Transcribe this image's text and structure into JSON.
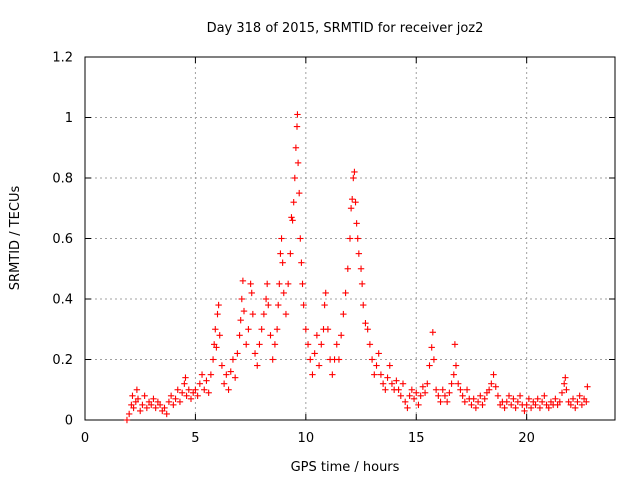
{
  "chart_data": {
    "type": "scatter",
    "title": "Day 318 of 2015, SRMTID for receiver joz2",
    "xlabel": "GPS time / hours",
    "ylabel": "SRMTID / TECUs",
    "xlim": [
      0,
      24
    ],
    "ylim": [
      0,
      1.2
    ],
    "xticks": [
      0,
      5,
      10,
      15,
      20
    ],
    "yticks": [
      0,
      0.2,
      0.4,
      0.6,
      0.8,
      1,
      1.2
    ],
    "ytick_labels": [
      "0",
      "0.2",
      "0.4",
      "0.6",
      "0.8",
      "1",
      "1.2"
    ],
    "grid": true,
    "marker": "+",
    "color": "#ff0000",
    "series": [
      {
        "name": "joz2",
        "points": [
          [
            1.9,
            0.0
          ],
          [
            2.0,
            0.02
          ],
          [
            2.1,
            0.05
          ],
          [
            2.15,
            0.08
          ],
          [
            2.2,
            0.04
          ],
          [
            2.3,
            0.06
          ],
          [
            2.35,
            0.1
          ],
          [
            2.4,
            0.07
          ],
          [
            2.5,
            0.03
          ],
          [
            2.6,
            0.05
          ],
          [
            2.7,
            0.08
          ],
          [
            2.8,
            0.04
          ],
          [
            2.9,
            0.06
          ],
          [
            3.0,
            0.05
          ],
          [
            3.1,
            0.07
          ],
          [
            3.2,
            0.04
          ],
          [
            3.3,
            0.06
          ],
          [
            3.4,
            0.05
          ],
          [
            3.5,
            0.03
          ],
          [
            3.6,
            0.04
          ],
          [
            3.7,
            0.02
          ],
          [
            3.8,
            0.06
          ],
          [
            3.9,
            0.08
          ],
          [
            4.0,
            0.05
          ],
          [
            4.1,
            0.07
          ],
          [
            4.2,
            0.1
          ],
          [
            4.3,
            0.06
          ],
          [
            4.4,
            0.09
          ],
          [
            4.5,
            0.12
          ],
          [
            4.55,
            0.14
          ],
          [
            4.6,
            0.08
          ],
          [
            4.7,
            0.1
          ],
          [
            4.8,
            0.07
          ],
          [
            4.9,
            0.09
          ],
          [
            5.0,
            0.1
          ],
          [
            5.1,
            0.08
          ],
          [
            5.2,
            0.12
          ],
          [
            5.3,
            0.15
          ],
          [
            5.4,
            0.1
          ],
          [
            5.5,
            0.13
          ],
          [
            5.6,
            0.09
          ],
          [
            5.7,
            0.15
          ],
          [
            5.8,
            0.2
          ],
          [
            5.85,
            0.25
          ],
          [
            5.9,
            0.3
          ],
          [
            5.95,
            0.24
          ],
          [
            6.0,
            0.35
          ],
          [
            6.05,
            0.38
          ],
          [
            6.1,
            0.28
          ],
          [
            6.2,
            0.18
          ],
          [
            6.3,
            0.12
          ],
          [
            6.4,
            0.15
          ],
          [
            6.5,
            0.1
          ],
          [
            6.6,
            0.16
          ],
          [
            6.7,
            0.2
          ],
          [
            6.8,
            0.14
          ],
          [
            6.9,
            0.22
          ],
          [
            7.0,
            0.28
          ],
          [
            7.05,
            0.33
          ],
          [
            7.1,
            0.4
          ],
          [
            7.15,
            0.46
          ],
          [
            7.2,
            0.36
          ],
          [
            7.3,
            0.25
          ],
          [
            7.4,
            0.3
          ],
          [
            7.5,
            0.45
          ],
          [
            7.55,
            0.42
          ],
          [
            7.6,
            0.35
          ],
          [
            7.7,
            0.22
          ],
          [
            7.8,
            0.18
          ],
          [
            7.9,
            0.25
          ],
          [
            8.0,
            0.3
          ],
          [
            8.1,
            0.35
          ],
          [
            8.2,
            0.4
          ],
          [
            8.25,
            0.45
          ],
          [
            8.3,
            0.38
          ],
          [
            8.4,
            0.28
          ],
          [
            8.5,
            0.2
          ],
          [
            8.6,
            0.25
          ],
          [
            8.7,
            0.3
          ],
          [
            8.75,
            0.38
          ],
          [
            8.8,
            0.45
          ],
          [
            8.85,
            0.55
          ],
          [
            8.9,
            0.6
          ],
          [
            8.95,
            0.52
          ],
          [
            9.0,
            0.42
          ],
          [
            9.1,
            0.35
          ],
          [
            9.2,
            0.45
          ],
          [
            9.3,
            0.55
          ],
          [
            9.35,
            0.67
          ],
          [
            9.4,
            0.66
          ],
          [
            9.45,
            0.72
          ],
          [
            9.5,
            0.8
          ],
          [
            9.55,
            0.9
          ],
          [
            9.6,
            0.97
          ],
          [
            9.62,
            1.01
          ],
          [
            9.65,
            0.85
          ],
          [
            9.7,
            0.75
          ],
          [
            9.75,
            0.6
          ],
          [
            9.8,
            0.52
          ],
          [
            9.85,
            0.45
          ],
          [
            9.9,
            0.38
          ],
          [
            10.0,
            0.3
          ],
          [
            10.1,
            0.25
          ],
          [
            10.2,
            0.2
          ],
          [
            10.3,
            0.15
          ],
          [
            10.4,
            0.22
          ],
          [
            10.5,
            0.28
          ],
          [
            10.6,
            0.18
          ],
          [
            10.7,
            0.25
          ],
          [
            10.8,
            0.3
          ],
          [
            10.85,
            0.38
          ],
          [
            10.9,
            0.42
          ],
          [
            11.0,
            0.3
          ],
          [
            11.1,
            0.2
          ],
          [
            11.2,
            0.15
          ],
          [
            11.3,
            0.2
          ],
          [
            11.4,
            0.25
          ],
          [
            11.5,
            0.2
          ],
          [
            11.6,
            0.28
          ],
          [
            11.7,
            0.35
          ],
          [
            11.8,
            0.42
          ],
          [
            11.9,
            0.5
          ],
          [
            12.0,
            0.6
          ],
          [
            12.05,
            0.7
          ],
          [
            12.1,
            0.73
          ],
          [
            12.15,
            0.8
          ],
          [
            12.2,
            0.82
          ],
          [
            12.25,
            0.72
          ],
          [
            12.3,
            0.65
          ],
          [
            12.35,
            0.6
          ],
          [
            12.4,
            0.55
          ],
          [
            12.5,
            0.5
          ],
          [
            12.55,
            0.45
          ],
          [
            12.6,
            0.38
          ],
          [
            12.7,
            0.32
          ],
          [
            12.8,
            0.3
          ],
          [
            12.9,
            0.25
          ],
          [
            13.0,
            0.2
          ],
          [
            13.1,
            0.15
          ],
          [
            13.2,
            0.18
          ],
          [
            13.3,
            0.22
          ],
          [
            13.4,
            0.15
          ],
          [
            13.5,
            0.12
          ],
          [
            13.6,
            0.1
          ],
          [
            13.7,
            0.14
          ],
          [
            13.8,
            0.18
          ],
          [
            13.9,
            0.12
          ],
          [
            14.0,
            0.1
          ],
          [
            14.1,
            0.13
          ],
          [
            14.2,
            0.1
          ],
          [
            14.3,
            0.08
          ],
          [
            14.4,
            0.12
          ],
          [
            14.5,
            0.06
          ],
          [
            14.6,
            0.04
          ],
          [
            14.7,
            0.08
          ],
          [
            14.8,
            0.1
          ],
          [
            14.9,
            0.07
          ],
          [
            15.0,
            0.09
          ],
          [
            15.1,
            0.05
          ],
          [
            15.2,
            0.08
          ],
          [
            15.3,
            0.11
          ],
          [
            15.4,
            0.09
          ],
          [
            15.5,
            0.12
          ],
          [
            15.6,
            0.18
          ],
          [
            15.7,
            0.24
          ],
          [
            15.75,
            0.29
          ],
          [
            15.8,
            0.2
          ],
          [
            15.9,
            0.1
          ],
          [
            16.0,
            0.08
          ],
          [
            16.1,
            0.06
          ],
          [
            16.2,
            0.1
          ],
          [
            16.3,
            0.08
          ],
          [
            16.4,
            0.06
          ],
          [
            16.5,
            0.09
          ],
          [
            16.6,
            0.12
          ],
          [
            16.7,
            0.15
          ],
          [
            16.75,
            0.25
          ],
          [
            16.8,
            0.18
          ],
          [
            16.9,
            0.12
          ],
          [
            17.0,
            0.1
          ],
          [
            17.1,
            0.08
          ],
          [
            17.2,
            0.06
          ],
          [
            17.3,
            0.1
          ],
          [
            17.4,
            0.07
          ],
          [
            17.5,
            0.05
          ],
          [
            17.6,
            0.07
          ],
          [
            17.7,
            0.04
          ],
          [
            17.8,
            0.06
          ],
          [
            17.9,
            0.08
          ],
          [
            18.0,
            0.05
          ],
          [
            18.1,
            0.07
          ],
          [
            18.2,
            0.09
          ],
          [
            18.3,
            0.1
          ],
          [
            18.4,
            0.12
          ],
          [
            18.5,
            0.15
          ],
          [
            18.6,
            0.11
          ],
          [
            18.7,
            0.08
          ],
          [
            18.8,
            0.05
          ],
          [
            18.9,
            0.06
          ],
          [
            19.0,
            0.04
          ],
          [
            19.1,
            0.06
          ],
          [
            19.2,
            0.08
          ],
          [
            19.3,
            0.05
          ],
          [
            19.4,
            0.07
          ],
          [
            19.5,
            0.04
          ],
          [
            19.6,
            0.06
          ],
          [
            19.7,
            0.08
          ],
          [
            19.8,
            0.05
          ],
          [
            19.9,
            0.03
          ],
          [
            20.0,
            0.05
          ],
          [
            20.1,
            0.07
          ],
          [
            20.2,
            0.04
          ],
          [
            20.3,
            0.06
          ],
          [
            20.4,
            0.05
          ],
          [
            20.5,
            0.07
          ],
          [
            20.6,
            0.04
          ],
          [
            20.7,
            0.06
          ],
          [
            20.8,
            0.08
          ],
          [
            20.9,
            0.05
          ],
          [
            21.0,
            0.04
          ],
          [
            21.1,
            0.06
          ],
          [
            21.2,
            0.05
          ],
          [
            21.3,
            0.07
          ],
          [
            21.4,
            0.05
          ],
          [
            21.5,
            0.06
          ],
          [
            21.6,
            0.09
          ],
          [
            21.7,
            0.12
          ],
          [
            21.75,
            0.14
          ],
          [
            21.8,
            0.1
          ],
          [
            21.9,
            0.06
          ],
          [
            22.0,
            0.05
          ],
          [
            22.1,
            0.07
          ],
          [
            22.2,
            0.04
          ],
          [
            22.3,
            0.06
          ],
          [
            22.4,
            0.08
          ],
          [
            22.5,
            0.05
          ],
          [
            22.6,
            0.07
          ],
          [
            22.7,
            0.06
          ],
          [
            22.75,
            0.11
          ]
        ]
      }
    ]
  }
}
